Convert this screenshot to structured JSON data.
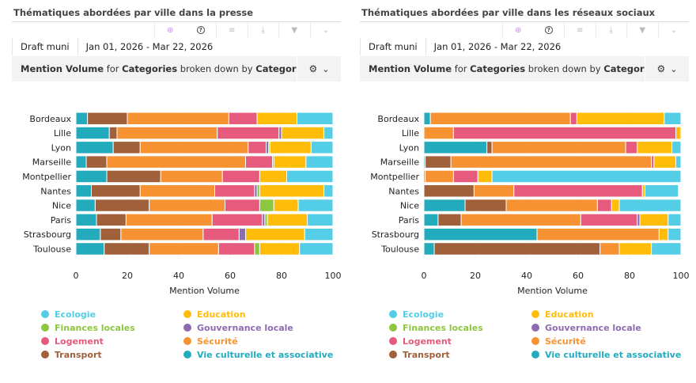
{
  "panels": [
    {
      "title": "Thématiques abordées par ville dans la presse",
      "filter_chip": "Draft muni",
      "date_range": "Jan 01, 2026 - Mar 22, 2026",
      "metric": {
        "m1": "Mention Volume",
        "t1": " for ",
        "m2": "Categories",
        "t2": " broken down by ",
        "m3": "Categori..."
      },
      "toolbar_icons": [
        "ai-sparkle-icon",
        "help-icon",
        "menu-icon",
        "download-icon",
        "filter-icon",
        "chevron-down-icon"
      ]
    },
    {
      "title": "Thématiques abordées par ville dans les réseaux sociaux",
      "filter_chip": "Draft muni",
      "date_range": "Jan 01, 2026 - Mar 22, 2026",
      "metric": {
        "m1": "Mention Volume",
        "t1": " for ",
        "m2": "Categories",
        "t2": " broken down by ",
        "m3": "Categori..."
      },
      "toolbar_icons": [
        "ai-sparkle-icon",
        "help-icon",
        "menu-icon",
        "download-icon",
        "filter-icon",
        "chevron-down-icon"
      ]
    }
  ],
  "icons": {
    "ai": "⊕",
    "help": "?",
    "menu": "≡",
    "download": "⤓",
    "filter": "▼",
    "chevron": "⌄",
    "gear": "⚙",
    "caret": "⌄"
  },
  "chart_data": [
    {
      "type": "bar",
      "orientation": "horizontal",
      "stacked": true,
      "title": "Thématiques abordées par ville dans la presse",
      "xlabel": "Mention Volume",
      "ylabel": "",
      "xlim": [
        0,
        100
      ],
      "xticks": [
        0,
        20,
        40,
        60,
        80,
        100
      ],
      "grid": true,
      "legend_position": "bottom",
      "categories": [
        "Bordeaux",
        "Lille",
        "Lyon",
        "Marseille",
        "Montpellier",
        "Nantes",
        "Nice",
        "Paris",
        "Strasbourg",
        "Toulouse"
      ],
      "series": [
        {
          "name": "Vie culturelle et associative",
          "color": "#22abbd",
          "values": [
            4.5,
            13,
            14.5,
            4,
            12,
            6,
            7.5,
            8,
            9.5,
            11
          ]
        },
        {
          "name": "Transport",
          "color": "#a0603a",
          "values": [
            15.5,
            3,
            10.5,
            8,
            21,
            19,
            21,
            11.5,
            8,
            17.5
          ]
        },
        {
          "name": "Sécurité",
          "color": "#f79232",
          "values": [
            39.5,
            39,
            42,
            54,
            24,
            29,
            29.5,
            33.5,
            32,
            27
          ]
        },
        {
          "name": "Logement",
          "color": "#e55a7d",
          "values": [
            11,
            24,
            7,
            10.5,
            14.5,
            15.5,
            13.5,
            19.5,
            14,
            14
          ]
        },
        {
          "name": "Gouvernance locale",
          "color": "#8e6bb0",
          "values": [
            0,
            1,
            1,
            0.5,
            0,
            1,
            0,
            1,
            2.5,
            0
          ]
        },
        {
          "name": "Finances locales",
          "color": "#8dc63f",
          "values": [
            0,
            0,
            0.5,
            0,
            0,
            1,
            5.5,
            1,
            0,
            2
          ]
        },
        {
          "name": "Education",
          "color": "#ffbd0a",
          "values": [
            15.5,
            16.5,
            16,
            12.5,
            10.5,
            25,
            9.5,
            15.5,
            23,
            15.5
          ]
        },
        {
          "name": "Ecologie",
          "color": "#54cde6",
          "values": [
            14,
            3.5,
            8.5,
            10.5,
            18,
            3.5,
            13.5,
            10,
            11,
            13
          ]
        }
      ]
    },
    {
      "type": "bar",
      "orientation": "horizontal",
      "stacked": true,
      "title": "Thématiques abordées par ville dans les réseaux sociaux",
      "xlabel": "Mention Volume",
      "ylabel": "",
      "xlim": [
        0,
        100
      ],
      "xticks": [
        0,
        20,
        40,
        60,
        80,
        100
      ],
      "grid": true,
      "legend_position": "bottom",
      "categories": [
        "Bordeaux",
        "Lille",
        "Lyon",
        "Marseille",
        "Montpellier",
        "Nantes",
        "Nice",
        "Paris",
        "Strasbourg",
        "Toulouse"
      ],
      "series": [
        {
          "name": "Vie culturelle et associative",
          "color": "#22abbd",
          "values": [
            2.5,
            0,
            24.5,
            0.5,
            0,
            0,
            16,
            5.5,
            44,
            4
          ]
        },
        {
          "name": "Transport",
          "color": "#a0603a",
          "values": [
            0,
            0,
            2,
            10,
            0.5,
            19.5,
            16,
            9,
            0,
            64.5
          ]
        },
        {
          "name": "Sécurité",
          "color": "#f79232",
          "values": [
            54.5,
            11.5,
            52,
            78,
            11,
            15.5,
            35.5,
            46.5,
            47.5,
            7.5
          ]
        },
        {
          "name": "Logement",
          "color": "#e55a7d",
          "values": [
            2.5,
            86.5,
            4.5,
            1,
            9.5,
            50,
            5.5,
            22,
            0,
            0
          ]
        },
        {
          "name": "Gouvernance locale",
          "color": "#8e6bb0",
          "values": [
            0,
            0,
            0,
            0,
            0,
            0,
            0,
            1,
            0,
            0
          ]
        },
        {
          "name": "Finances locales",
          "color": "#8dc63f",
          "values": [
            0,
            0,
            0,
            0,
            0,
            0,
            0,
            0,
            0,
            0
          ]
        },
        {
          "name": "Education",
          "color": "#ffbd0a",
          "values": [
            34,
            2,
            13.5,
            8.5,
            5.5,
            1,
            3,
            11,
            3.5,
            12.5
          ]
        },
        {
          "name": "Ecologie",
          "color": "#54cde6",
          "values": [
            6.5,
            0,
            3.5,
            2,
            73.5,
            13,
            24,
            5,
            5,
            11.5
          ]
        }
      ]
    }
  ],
  "legend": [
    {
      "name": "Ecologie",
      "color": "#54cde6"
    },
    {
      "name": "Education",
      "color": "#ffbd0a"
    },
    {
      "name": "Finances locales",
      "color": "#8dc63f"
    },
    {
      "name": "Gouvernance locale",
      "color": "#8e6bb0"
    },
    {
      "name": "Logement",
      "color": "#e55a7d"
    },
    {
      "name": "Sécurité",
      "color": "#f79232"
    },
    {
      "name": "Transport",
      "color": "#a0603a"
    },
    {
      "name": "Vie culturelle et associative",
      "color": "#22abbd"
    }
  ]
}
